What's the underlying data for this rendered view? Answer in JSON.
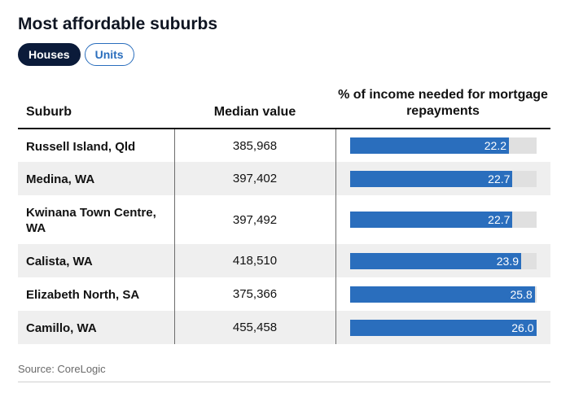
{
  "title": "Most affordable suburbs",
  "toggles": [
    {
      "label": "Houses",
      "active": true
    },
    {
      "label": "Units",
      "active": false
    }
  ],
  "table": {
    "headers": [
      "Suburb",
      "Median value",
      "% of income needed for mortgage repayments"
    ],
    "bar_max": 26.0,
    "rows": [
      {
        "suburb": "Russell Island, Qld",
        "median": "385,968",
        "pct": 22.2
      },
      {
        "suburb": "Medina, WA",
        "median": "397,402",
        "pct": 22.7
      },
      {
        "suburb": "Kwinana Town Centre, WA",
        "median": "397,492",
        "pct": 22.7
      },
      {
        "suburb": "Calista, WA",
        "median": "418,510",
        "pct": 23.9
      },
      {
        "suburb": "Elizabeth North, SA",
        "median": "375,366",
        "pct": 25.8
      },
      {
        "suburb": "Camillo, WA",
        "median": "455,458",
        "pct": 26.0
      }
    ]
  },
  "source": "Source: CoreLogic",
  "colors": {
    "bar": "#2a6ebd",
    "track": "#e0e0e0",
    "active_toggle": "#0b1b3a"
  }
}
